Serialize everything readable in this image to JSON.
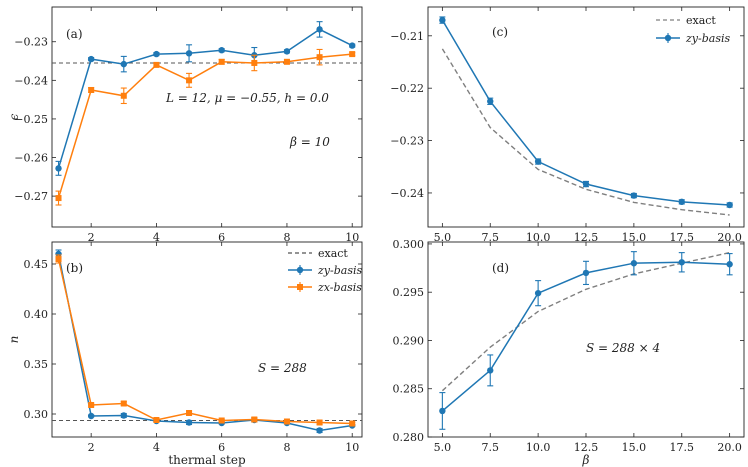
{
  "figure": {
    "xlabel_bottom_left": "thermal step",
    "xlabel_bottom_right": "β"
  },
  "chart_data": [
    {
      "id": "a",
      "type": "line",
      "panel_label": "(a)",
      "ylabel": "ϵ",
      "xlabel": "",
      "xlim": [
        0.8,
        10.3
      ],
      "ylim": [
        -0.278,
        -0.221
      ],
      "xticks": [
        2,
        4,
        6,
        8,
        10
      ],
      "xtick_labels": [
        "2",
        "4",
        "6",
        "8",
        "10"
      ],
      "yticks": [
        -0.27,
        -0.26,
        -0.25,
        -0.24,
        -0.23
      ],
      "ytick_labels": [
        "−0.27",
        "−0.26",
        "−0.25",
        "−0.24",
        "−0.23"
      ],
      "reference_line": -0.2355,
      "series": [
        {
          "color": "#1f77b4",
          "marker": "circle",
          "x": [
            1,
            2,
            3,
            4,
            5,
            6,
            7,
            8,
            9,
            10
          ],
          "y": [
            -0.2628,
            -0.2345,
            -0.2358,
            -0.2332,
            -0.233,
            -0.2322,
            -0.2335,
            -0.2325,
            -0.2268,
            -0.231
          ],
          "err": [
            0.0018,
            0.0004,
            0.002,
            0.0004,
            0.0022,
            0.0004,
            0.002,
            0.0004,
            0.002,
            0.0004
          ]
        },
        {
          "color": "#ff7f0e",
          "marker": "square",
          "x": [
            1,
            2,
            3,
            4,
            5,
            6,
            7,
            8,
            9,
            10
          ],
          "y": [
            -0.2705,
            -0.2425,
            -0.244,
            -0.236,
            -0.24,
            -0.2352,
            -0.2355,
            -0.2352,
            -0.234,
            -0.2332
          ],
          "err": [
            0.0018,
            0.0006,
            0.002,
            0.0004,
            0.0018,
            0.0006,
            0.002,
            0.0004,
            0.002,
            0.0004
          ]
        }
      ],
      "annotations": [
        "L = 12, μ = −0.55, h = 0.0",
        "β = 10"
      ]
    },
    {
      "id": "b",
      "type": "line",
      "panel_label": "(b)",
      "ylabel": "n",
      "xlabel": "thermal step",
      "xlim": [
        0.8,
        10.3
      ],
      "ylim": [
        0.277,
        0.472
      ],
      "xticks": [
        2,
        4,
        6,
        8,
        10
      ],
      "xtick_labels": [
        "2",
        "4",
        "6",
        "8",
        "10"
      ],
      "yticks": [
        0.3,
        0.35,
        0.4,
        0.45
      ],
      "ytick_labels": [
        "0.30",
        "0.35",
        "0.40",
        "0.45"
      ],
      "reference_line": 0.2935,
      "legend": [
        "exact",
        "zy-basis",
        "zx-basis"
      ],
      "legend_position": "top-right",
      "series": [
        {
          "name": "zy-basis",
          "color": "#1f77b4",
          "marker": "circle",
          "x": [
            1,
            2,
            3,
            4,
            5,
            6,
            7,
            8,
            9,
            10
          ],
          "y": [
            0.46,
            0.298,
            0.2985,
            0.293,
            0.2915,
            0.291,
            0.294,
            0.291,
            0.2835,
            0.2885
          ],
          "err": [
            0.004,
            0.001,
            0.002,
            0.001,
            0.002,
            0.001,
            0.002,
            0.001,
            0.002,
            0.001
          ]
        },
        {
          "name": "zx-basis",
          "color": "#ff7f0e",
          "marker": "square",
          "x": [
            1,
            2,
            3,
            4,
            5,
            6,
            7,
            8,
            9,
            10
          ],
          "y": [
            0.455,
            0.309,
            0.3105,
            0.294,
            0.301,
            0.2935,
            0.2945,
            0.2925,
            0.2915,
            0.2905
          ],
          "err": [
            0.004,
            0.001,
            0.002,
            0.001,
            0.002,
            0.001,
            0.002,
            0.001,
            0.002,
            0.001
          ]
        }
      ],
      "annotations": [
        "S = 288"
      ]
    },
    {
      "id": "c",
      "type": "line",
      "panel_label": "(c)",
      "ylabel": "",
      "xlabel": "",
      "xlim": [
        4.25,
        20.75
      ],
      "ylim": [
        -0.2465,
        -0.2045
      ],
      "xticks": [
        5,
        7.5,
        10,
        12.5,
        15,
        17.5,
        20
      ],
      "xtick_labels": [
        "5.0",
        "7.5",
        "10.0",
        "12.5",
        "15.0",
        "17.5",
        "20.0"
      ],
      "yticks": [
        -0.24,
        -0.23,
        -0.22,
        -0.21
      ],
      "ytick_labels": [
        "−0.24",
        "−0.23",
        "−0.22",
        "−0.21"
      ],
      "legend": [
        "exact",
        "zy-basis"
      ],
      "legend_position": "top-right",
      "series": [
        {
          "name": "exact",
          "color": "#7f7f7f",
          "style": "dashed",
          "x": [
            5,
            7.5,
            10,
            12.5,
            15,
            17.5,
            20
          ],
          "y": [
            -0.2125,
            -0.2275,
            -0.2355,
            -0.2393,
            -0.2418,
            -0.2432,
            -0.2442
          ],
          "err": []
        },
        {
          "name": "zy-basis",
          "color": "#1f77b4",
          "marker": "circle",
          "x": [
            5,
            7.5,
            10,
            12.5,
            15,
            17.5,
            20
          ],
          "y": [
            -0.207,
            -0.2225,
            -0.234,
            -0.2383,
            -0.2405,
            -0.2417,
            -0.2423
          ],
          "err": [
            0.0006,
            0.0006,
            0.0005,
            0.0005,
            0.0004,
            0.0004,
            0.0004
          ]
        }
      ]
    },
    {
      "id": "d",
      "type": "line",
      "panel_label": "(d)",
      "ylabel": "",
      "xlabel": "β",
      "xlim": [
        4.25,
        20.75
      ],
      "ylim": [
        0.28,
        0.3002
      ],
      "xticks": [
        5,
        7.5,
        10,
        12.5,
        15,
        17.5,
        20
      ],
      "xtick_labels": [
        "5.0",
        "7.5",
        "10.0",
        "12.5",
        "15.0",
        "17.5",
        "20.0"
      ],
      "yticks": [
        0.28,
        0.285,
        0.29,
        0.295,
        0.3
      ],
      "ytick_labels": [
        "0.280",
        "0.285",
        "0.290",
        "0.295",
        "0.300"
      ],
      "series": [
        {
          "name": "exact",
          "color": "#7f7f7f",
          "style": "dashed",
          "x": [
            5,
            7.5,
            10,
            12.5,
            15,
            17.5,
            20
          ],
          "y": [
            0.2848,
            0.2893,
            0.293,
            0.2953,
            0.2969,
            0.298,
            0.2991
          ],
          "err": []
        },
        {
          "name": "zy-basis",
          "color": "#1f77b4",
          "marker": "circle",
          "x": [
            5,
            7.5,
            10,
            12.5,
            15,
            17.5,
            20
          ],
          "y": [
            0.2827,
            0.2869,
            0.2949,
            0.297,
            0.298,
            0.2981,
            0.2979
          ],
          "err": [
            0.0019,
            0.0016,
            0.0013,
            0.0012,
            0.0012,
            0.001,
            0.0011
          ]
        }
      ],
      "annotations": [
        "S = 288 × 4"
      ]
    }
  ]
}
